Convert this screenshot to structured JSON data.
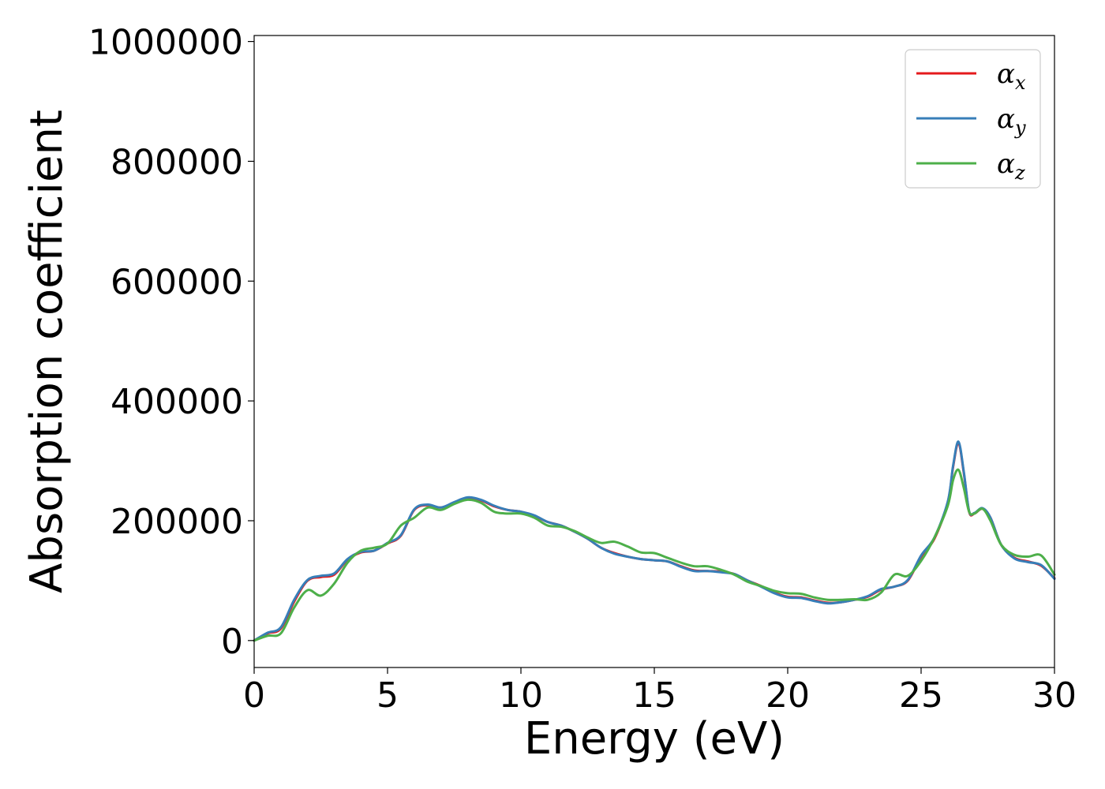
{
  "chart_data": {
    "type": "line",
    "title": "",
    "xlabel": "Energy (eV)",
    "ylabel": "Absorption coefficient",
    "xlim": [
      0,
      30
    ],
    "ylim": [
      -45000,
      1010000
    ],
    "xticks": [
      0,
      5,
      10,
      15,
      20,
      25,
      30
    ],
    "yticks": [
      0,
      200000,
      400000,
      600000,
      800000,
      1000000
    ],
    "grid": false,
    "legend": {
      "position": "top-right",
      "entries": [
        {
          "symbol": "α",
          "subscript": "x",
          "color": "#e41a1c"
        },
        {
          "symbol": "α",
          "subscript": "y",
          "color": "#377eb8"
        },
        {
          "symbol": "α",
          "subscript": "z",
          "color": "#4daf4a"
        }
      ]
    },
    "x": [
      0,
      0.5,
      1,
      1.5,
      2,
      2.5,
      3,
      3.5,
      4,
      4.5,
      5,
      5.5,
      6,
      6.5,
      7,
      7.5,
      8,
      8.5,
      9,
      9.5,
      10,
      10.5,
      11,
      11.5,
      12,
      12.5,
      13,
      13.5,
      14,
      14.5,
      15,
      15.5,
      16,
      16.5,
      17,
      17.5,
      18,
      18.5,
      19,
      19.5,
      20,
      20.5,
      21,
      21.5,
      22,
      22.5,
      23,
      23.5,
      24,
      24.5,
      25,
      25.5,
      26,
      26.2,
      26.4,
      26.6,
      26.8,
      27,
      27.3,
      27.6,
      28,
      28.5,
      29,
      29.5,
      30
    ],
    "series": [
      {
        "name": "αx",
        "color": "#e41a1c",
        "values": [
          0,
          12000,
          20000,
          65000,
          100000,
          106000,
          110000,
          135000,
          147000,
          150000,
          162000,
          175000,
          218000,
          226000,
          222000,
          230000,
          238000,
          234000,
          224000,
          218000,
          215000,
          208000,
          198000,
          192000,
          182000,
          170000,
          155000,
          146000,
          140000,
          136000,
          134000,
          132000,
          124000,
          117000,
          116000,
          115000,
          111000,
          100000,
          91000,
          80000,
          73000,
          72000,
          67000,
          63000,
          64000,
          68000,
          73000,
          85000,
          90000,
          100000,
          140000,
          170000,
          230000,
          290000,
          330000,
          280000,
          215000,
          212000,
          220000,
          205000,
          160000,
          138000,
          132000,
          125000,
          104000
        ]
      },
      {
        "name": "αy",
        "color": "#377eb8",
        "values": [
          0,
          13000,
          22000,
          68000,
          101000,
          108000,
          112000,
          136000,
          148000,
          150000,
          163000,
          176000,
          219000,
          227000,
          222000,
          231000,
          239000,
          235000,
          225000,
          218000,
          215000,
          209000,
          198000,
          192000,
          182000,
          170000,
          155000,
          145000,
          140000,
          136000,
          134000,
          132000,
          123000,
          116000,
          116000,
          114000,
          111000,
          100000,
          90000,
          79000,
          72000,
          71000,
          66000,
          62000,
          64000,
          68000,
          74000,
          86000,
          90000,
          101000,
          142000,
          172000,
          232000,
          292000,
          332000,
          282000,
          216000,
          213000,
          221000,
          205000,
          160000,
          137000,
          131000,
          126000,
          103000
        ]
      },
      {
        "name": "αz",
        "color": "#4daf4a",
        "values": [
          0,
          8000,
          12000,
          55000,
          84000,
          75000,
          95000,
          130000,
          150000,
          155000,
          162000,
          192000,
          205000,
          222000,
          218000,
          228000,
          235000,
          230000,
          215000,
          212000,
          212000,
          205000,
          192000,
          190000,
          183000,
          172000,
          163000,
          165000,
          157000,
          147000,
          146000,
          138000,
          130000,
          124000,
          124000,
          118000,
          110000,
          98000,
          91000,
          83000,
          79000,
          78000,
          72000,
          68000,
          68000,
          69000,
          68000,
          80000,
          110000,
          108000,
          133000,
          172000,
          225000,
          268000,
          285000,
          255000,
          215000,
          212000,
          220000,
          200000,
          160000,
          143000,
          140000,
          142000,
          110000
        ]
      }
    ]
  }
}
